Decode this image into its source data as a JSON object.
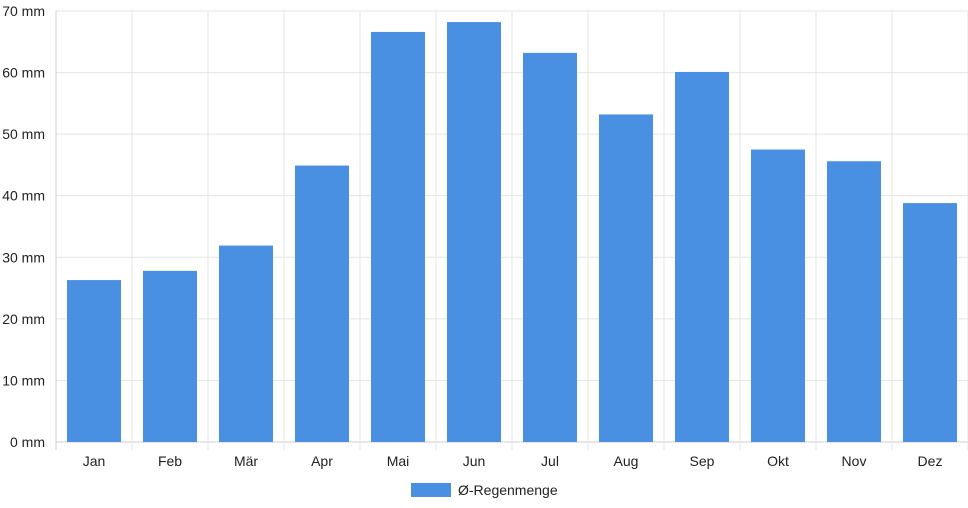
{
  "chart_data": {
    "type": "bar",
    "categories": [
      "Jan",
      "Feb",
      "Mär",
      "Apr",
      "Mai",
      "Jun",
      "Jul",
      "Aug",
      "Sep",
      "Okt",
      "Nov",
      "Dez"
    ],
    "series": [
      {
        "name": "Ø-Regenmenge",
        "values": [
          26.3,
          27.8,
          31.9,
          44.9,
          66.6,
          68.2,
          63.2,
          53.2,
          60.1,
          47.5,
          45.6,
          38.8
        ],
        "color": "#4a90e2"
      }
    ],
    "y_ticks": [
      "0 mm",
      "10 mm",
      "20 mm",
      "30 mm",
      "40 mm",
      "50 mm",
      "60 mm",
      "70 mm"
    ],
    "ylim": [
      0,
      70
    ],
    "grid": true,
    "legend": {
      "position": "bottom",
      "label": "Ø-Regenmenge"
    },
    "colors": {
      "bar": "#4a90e2",
      "grid": "#e4e4e4",
      "axis": "#cfcfcf"
    }
  }
}
